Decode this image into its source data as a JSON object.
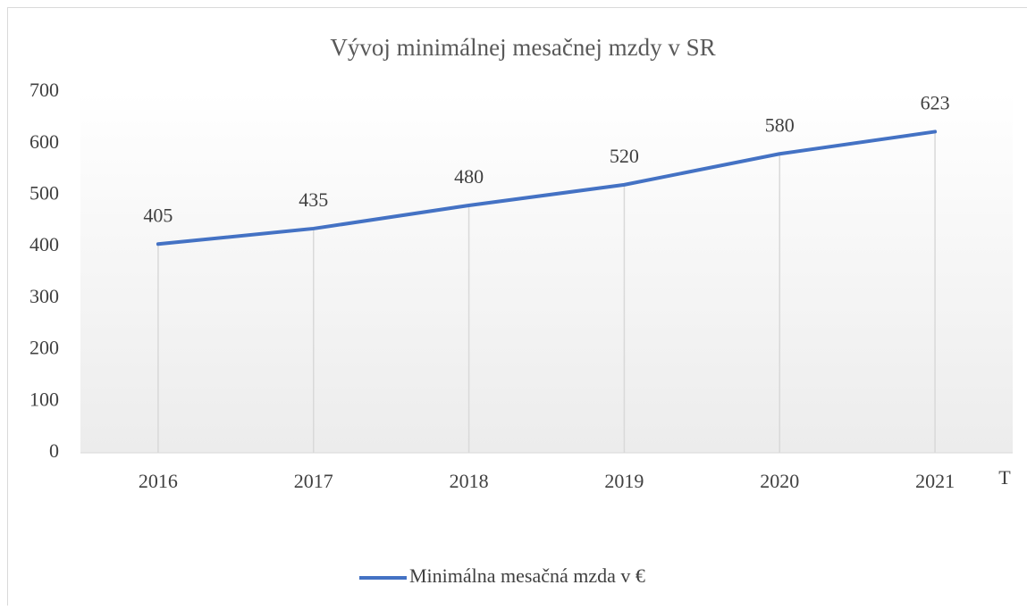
{
  "chart_data": {
    "type": "line",
    "title": "Vývoj minimálnej mesačnej mzdy v SR",
    "x_label": "T",
    "categories": [
      "2016",
      "2017",
      "2018",
      "2019",
      "2020",
      "2021"
    ],
    "series": [
      {
        "name": "Minimálna mesačná mzda v €",
        "color": "#4472c4",
        "values": [
          405,
          435,
          480,
          520,
          580,
          623
        ]
      }
    ],
    "ylim": [
      0,
      700
    ],
    "yticks": [
      0,
      100,
      200,
      300,
      400,
      500,
      600,
      700
    ],
    "data_labels": true,
    "drop_lines": true,
    "legend": "bottom"
  }
}
